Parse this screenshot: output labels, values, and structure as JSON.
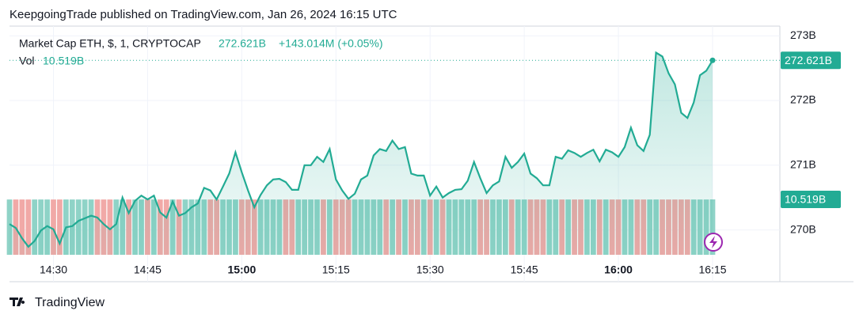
{
  "chart_data": {
    "type": "area",
    "title": "KeepgoingTrade published on TradingView.com, Jan 26, 2024 16:15 UTC",
    "symbol": "Market Cap ETH, $, 1, CRYPTOCAP",
    "last_price": {
      "value": 272.621,
      "label": "272.621B"
    },
    "change_label": "+143.014M (+0.05%)",
    "last_volume": {
      "value": 10.519,
      "label": "10.519B"
    },
    "footer": "TradingView",
    "x": [
      "14:23",
      "14:24",
      "14:25",
      "14:26",
      "14:27",
      "14:28",
      "14:29",
      "14:30",
      "14:31",
      "14:32",
      "14:33",
      "14:34",
      "14:35",
      "14:36",
      "14:37",
      "14:38",
      "14:39",
      "14:40",
      "14:41",
      "14:42",
      "14:43",
      "14:44",
      "14:45",
      "14:46",
      "14:47",
      "14:48",
      "14:49",
      "14:50",
      "14:51",
      "14:52",
      "14:53",
      "14:54",
      "14:55",
      "14:56",
      "14:57",
      "14:58",
      "14:59",
      "15:00",
      "15:01",
      "15:02",
      "15:03",
      "15:04",
      "15:05",
      "15:06",
      "15:07",
      "15:08",
      "15:09",
      "15:10",
      "15:11",
      "15:12",
      "15:13",
      "15:14",
      "15:15",
      "15:16",
      "15:17",
      "15:18",
      "15:19",
      "15:20",
      "15:21",
      "15:22",
      "15:23",
      "15:24",
      "15:25",
      "15:26",
      "15:27",
      "15:28",
      "15:29",
      "15:30",
      "15:31",
      "15:32",
      "15:33",
      "15:34",
      "15:35",
      "15:36",
      "15:37",
      "15:38",
      "15:39",
      "15:40",
      "15:41",
      "15:42",
      "15:43",
      "15:44",
      "15:45",
      "15:46",
      "15:47",
      "15:48",
      "15:49",
      "15:50",
      "15:51",
      "15:52",
      "15:53",
      "15:54",
      "15:55",
      "15:56",
      "15:57",
      "15:58",
      "15:59",
      "16:00",
      "16:01",
      "16:02",
      "16:03",
      "16:04",
      "16:05",
      "16:06",
      "16:07",
      "16:08",
      "16:09",
      "16:10",
      "16:11",
      "16:12",
      "16:13",
      "16:14",
      "16:15"
    ],
    "series": [
      {
        "name": "Market Cap ETH, $, 1, CRYPTOCAP",
        "color": "#22ab94",
        "values": [
          270.09,
          270.03,
          269.87,
          269.74,
          269.83,
          269.99,
          270.06,
          270.01,
          269.79,
          270.04,
          270.06,
          270.14,
          270.18,
          270.22,
          270.19,
          270.09,
          270.01,
          270.09,
          270.5,
          270.26,
          270.45,
          270.53,
          270.47,
          270.53,
          270.27,
          270.19,
          270.44,
          270.22,
          270.26,
          270.35,
          270.41,
          270.65,
          270.61,
          270.47,
          270.67,
          270.87,
          271.2,
          270.89,
          270.61,
          270.35,
          270.54,
          270.69,
          270.78,
          270.79,
          270.74,
          270.62,
          270.62,
          271.0,
          271.0,
          271.13,
          271.05,
          271.25,
          270.78,
          270.61,
          270.48,
          270.56,
          270.78,
          270.84,
          271.15,
          271.25,
          271.22,
          271.38,
          271.25,
          271.28,
          270.87,
          270.84,
          270.84,
          270.53,
          270.67,
          270.5,
          270.57,
          270.62,
          270.63,
          270.76,
          271.05,
          270.8,
          270.57,
          270.69,
          270.75,
          271.13,
          270.96,
          271.05,
          271.18,
          270.87,
          270.8,
          270.69,
          270.69,
          271.13,
          271.1,
          271.23,
          271.19,
          271.13,
          271.19,
          271.24,
          271.06,
          271.24,
          271.2,
          271.13,
          271.28,
          271.58,
          271.31,
          271.22,
          271.47,
          272.74,
          272.68,
          272.42,
          272.25,
          271.81,
          271.73,
          271.97,
          272.39,
          272.46,
          272.621
        ]
      },
      {
        "name": "Vol",
        "axis": "y2",
        "up_color": "#8fd3c7",
        "down_color": "#f1a9a7",
        "values": [
          10.5,
          10.5,
          10.5,
          10.5,
          10.5,
          10.5,
          10.5,
          10.5,
          10.5,
          10.5,
          10.5,
          10.5,
          10.5,
          10.5,
          10.5,
          10.5,
          10.5,
          10.5,
          10.5,
          10.5,
          10.5,
          10.5,
          10.5,
          10.5,
          10.5,
          10.5,
          10.5,
          10.5,
          10.5,
          10.5,
          10.5,
          10.5,
          10.5,
          10.5,
          10.5,
          10.5,
          10.5,
          10.5,
          10.5,
          10.5,
          10.5,
          10.5,
          10.5,
          10.5,
          10.5,
          10.5,
          10.5,
          10.5,
          10.5,
          10.5,
          10.5,
          10.5,
          10.5,
          10.5,
          10.5,
          10.5,
          10.5,
          10.5,
          10.5,
          10.5,
          10.5,
          10.5,
          10.5,
          10.5,
          10.5,
          10.5,
          10.5,
          10.5,
          10.5,
          10.5,
          10.5,
          10.5,
          10.5,
          10.5,
          10.5,
          10.5,
          10.5,
          10.5,
          10.5,
          10.5,
          10.5,
          10.5,
          10.5,
          10.5,
          10.5,
          10.5,
          10.5,
          10.5,
          10.5,
          10.5,
          10.5,
          10.5,
          10.5,
          10.5,
          10.5,
          10.5,
          10.5,
          10.5,
          10.5,
          10.5,
          10.5,
          10.5,
          10.5,
          10.5,
          10.5,
          10.5,
          10.5,
          10.5,
          10.5,
          10.5,
          10.5,
          10.5,
          10.519
        ]
      }
    ],
    "ylim": [
      269.2,
      273.15
    ],
    "yticks": [
      {
        "value": 270,
        "label": "270B"
      },
      {
        "value": 271,
        "label": "271B"
      },
      {
        "value": 272,
        "label": "272B"
      },
      {
        "value": 273,
        "label": "273B"
      }
    ],
    "y2lim": [
      0,
      10.519
    ],
    "xticks": [
      "14:30",
      "14:45",
      "15:00",
      "15:15",
      "15:30",
      "15:45",
      "16:00",
      "16:15"
    ],
    "grid": true
  }
}
